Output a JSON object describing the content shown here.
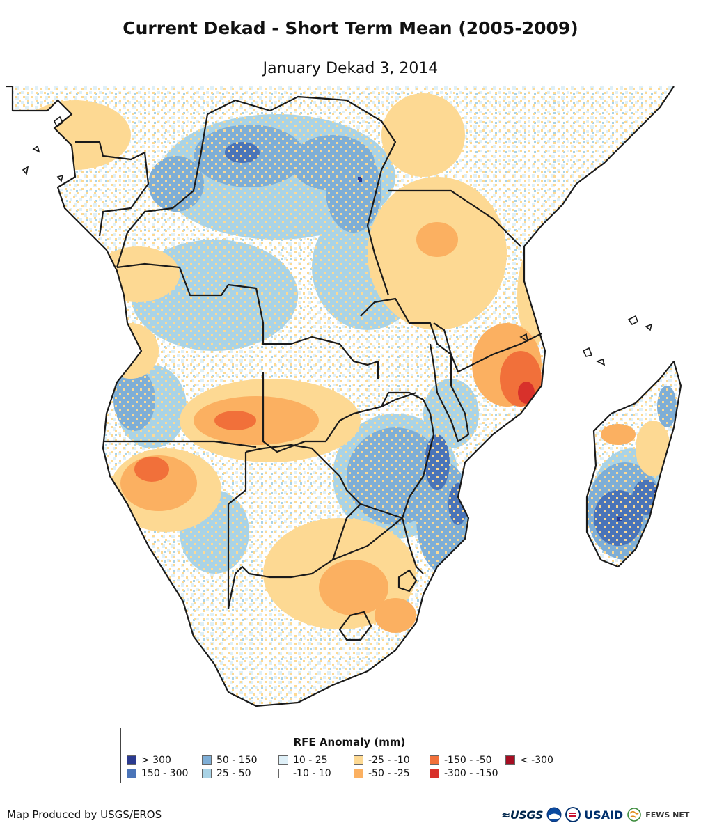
{
  "title": "Current Dekad - Short Term Mean (2005-2009)",
  "subtitle": "January Dekad 3, 2014",
  "legend": {
    "title": "RFE Anomaly (mm)",
    "items": [
      {
        "label": "> 300",
        "color": "#2b3a8f"
      },
      {
        "label": "150 - 300",
        "color": "#4a74b8"
      },
      {
        "label": "50 - 150",
        "color": "#7eaed6"
      },
      {
        "label": "25 - 50",
        "color": "#a9d3e6"
      },
      {
        "label": "10 - 25",
        "color": "#dff0f8"
      },
      {
        "label": "-10 - 10",
        "color": "#ffffff"
      },
      {
        "label": "-25 - -10",
        "color": "#fdd993"
      },
      {
        "label": "-50 - -25",
        "color": "#fbb061"
      },
      {
        "label": "-150 - -50",
        "color": "#f1703a"
      },
      {
        "label": "-300 - -150",
        "color": "#d8312b"
      },
      {
        "label": "< -300",
        "color": "#a50d22"
      }
    ]
  },
  "credit": "Map Produced by USGS/EROS",
  "logos": {
    "usgs": "≈USGS",
    "usaid": "USAID",
    "fews": "FEWS NET"
  }
}
